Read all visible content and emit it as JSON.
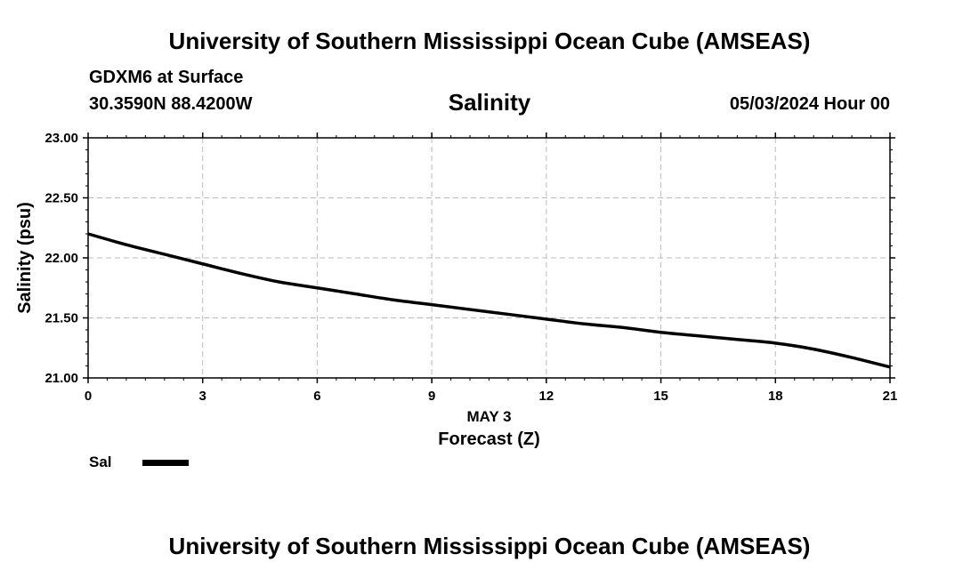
{
  "header": {
    "title": "University of Southern Mississippi Ocean Cube (AMSEAS)",
    "station": "GDXM6 at Surface",
    "coordinates": "30.3590N  88.4200W",
    "subtitle": "Salinity",
    "datetime": "05/03/2024 Hour 00"
  },
  "footer": {
    "title": "University of Southern Mississippi Ocean Cube (AMSEAS)"
  },
  "chart_data": {
    "type": "line",
    "title": "Salinity",
    "xlabel": "Forecast (Z)",
    "xlabel_date": "MAY 3",
    "ylabel": "Salinity (psu)",
    "xlim": [
      0,
      21
    ],
    "ylim": [
      21.0,
      23.0
    ],
    "xticks": [
      "0",
      "3",
      "6",
      "9",
      "12",
      "15",
      "18",
      "21"
    ],
    "yticks": [
      "21.00",
      "21.50",
      "22.00",
      "22.50",
      "23.00"
    ],
    "grid": true,
    "series": [
      {
        "name": "Sal",
        "color": "#000000",
        "x": [
          0,
          1,
          2,
          3,
          4,
          5,
          6,
          7,
          8,
          9,
          10,
          11,
          12,
          13,
          14,
          15,
          16,
          17,
          18,
          19,
          20,
          21
        ],
        "y": [
          22.2,
          22.11,
          22.03,
          21.95,
          21.87,
          21.8,
          21.75,
          21.7,
          21.65,
          21.61,
          21.57,
          21.53,
          21.49,
          21.45,
          21.42,
          21.38,
          21.35,
          21.32,
          21.29,
          21.24,
          21.17,
          21.09
        ]
      }
    ],
    "legend": {
      "position": "bottom-left",
      "label": "Sal"
    }
  }
}
